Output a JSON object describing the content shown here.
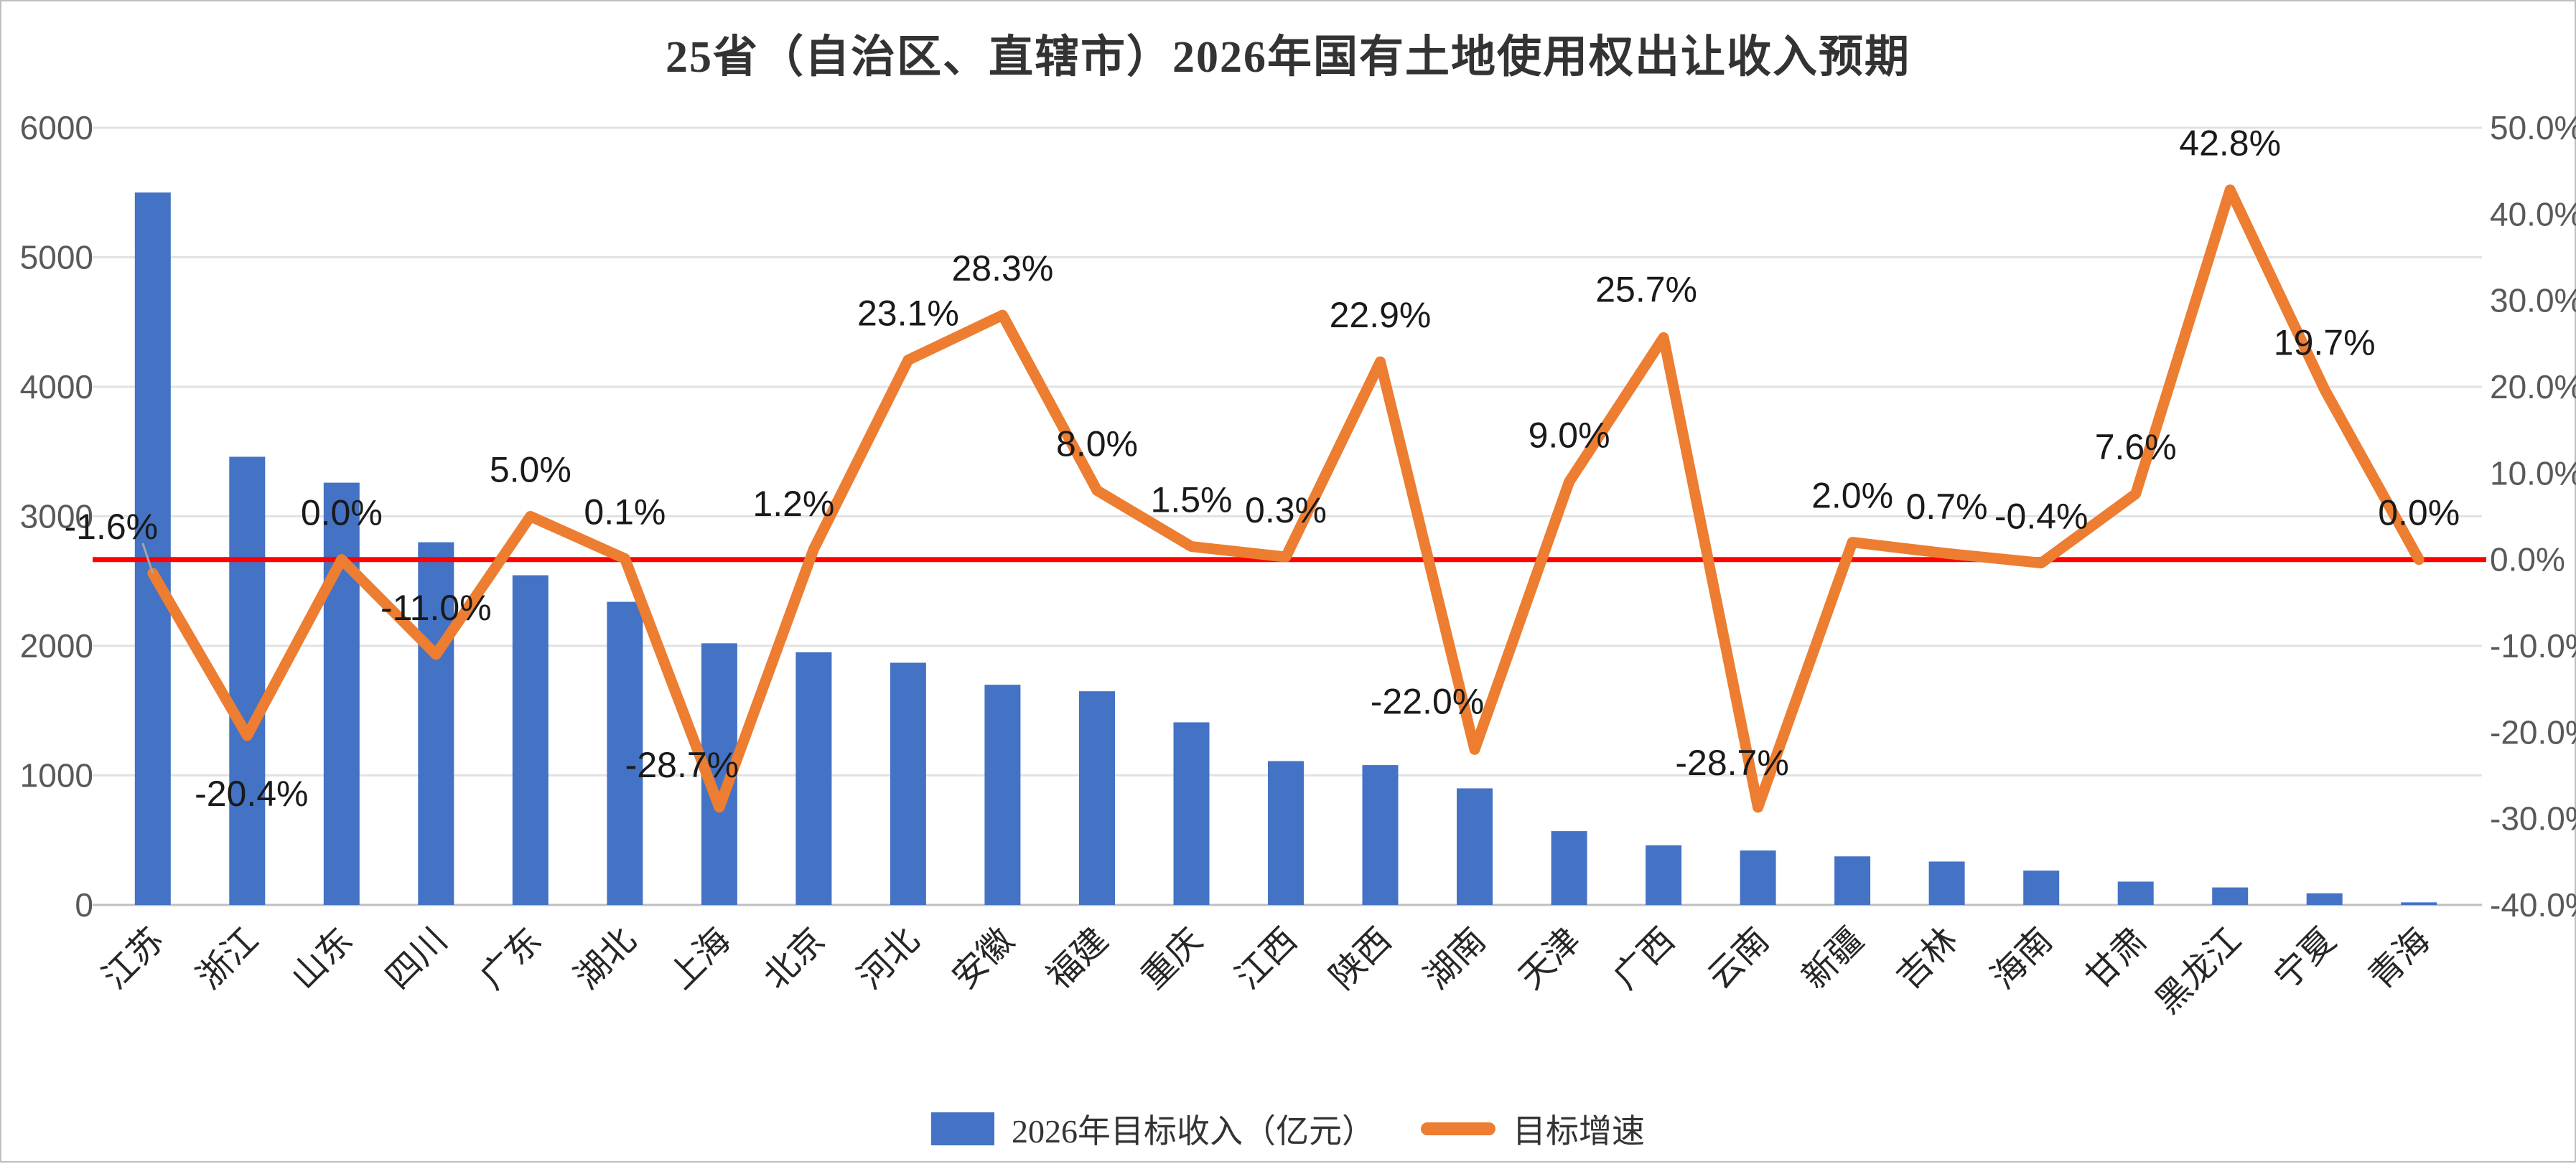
{
  "title": "25省（自治区、直辖市）2026年国有土地使用权出让收入预期",
  "legend": {
    "bar": "2026年目标收入（亿元）",
    "line": "目标增速"
  },
  "colors": {
    "bar": "#4472C4",
    "line": "#ED7D31",
    "zero_line": "#FF0000",
    "grid": "#E2E2E2",
    "axis_line": "#BFBFBF",
    "axis_text": "#595959",
    "label_text": "#1A1A1A",
    "category_text": "#262626"
  },
  "chart_data": {
    "type": "bar+line combo",
    "title": "25省（自治区、直辖市）2026年国有土地使用权出让收入预期",
    "categories": [
      "江苏",
      "浙江",
      "山东",
      "四川",
      "广东",
      "湖北",
      "上海",
      "北京",
      "河北",
      "安徽",
      "福建",
      "重庆",
      "江西",
      "陕西",
      "湖南",
      "天津",
      "广西",
      "云南",
      "新疆",
      "吉林",
      "海南",
      "甘肃",
      "黑龙江",
      "宁夏",
      "青海"
    ],
    "series": [
      {
        "name": "2026年目标收入（亿元）",
        "type": "bar",
        "axis": "left",
        "values": [
          5500,
          3460,
          3260,
          2800,
          2545,
          2340,
          2020,
          1950,
          1870,
          1700,
          1650,
          1410,
          1110,
          1080,
          900,
          570,
          460,
          420,
          375,
          335,
          265,
          180,
          135,
          90,
          20
        ]
      },
      {
        "name": "目标增速",
        "type": "line",
        "axis": "right",
        "values_pct": [
          -1.6,
          -20.4,
          0.0,
          -11.0,
          5.0,
          0.1,
          -28.7,
          1.2,
          23.1,
          28.3,
          8.0,
          1.5,
          0.3,
          22.9,
          -22.0,
          9.0,
          25.7,
          -28.7,
          2.0,
          0.7,
          -0.4,
          7.6,
          42.8,
          19.7,
          0.0
        ]
      }
    ],
    "data_labels": [
      "-1.6%",
      "-20.4%",
      "0.0%",
      "-11.0%",
      "5.0%",
      "0.1%",
      "-28.7%",
      "1.2%",
      "23.1%",
      "28.3%",
      "8.0%",
      "1.5%",
      "0.3%",
      "22.9%",
      "-22.0%",
      "9.0%",
      "25.7%",
      "-28.7%",
      "2.0%",
      "0.7%",
      "-0.4%",
      "7.6%",
      "42.8%",
      "19.7%",
      "0.0%"
    ],
    "left_axis": {
      "min": 0,
      "max": 6000,
      "step": 1000,
      "tick_values": [
        0,
        1000,
        2000,
        3000,
        4000,
        5000,
        6000
      ],
      "tick_labels": [
        "0",
        "1000",
        "2000",
        "3000",
        "4000",
        "5000",
        "6000"
      ]
    },
    "right_axis": {
      "min": -40,
      "max": 50,
      "step": 10,
      "tick_values": [
        50,
        40,
        30,
        20,
        10,
        0,
        -10,
        -20,
        -30,
        -40
      ],
      "tick_labels": [
        "50.0%",
        "40.0%",
        "30.0%",
        "20.0%",
        "10.0%",
        "0.0%",
        "-10.0%",
        "-20.0%",
        "-30.0%",
        "-40.0%"
      ]
    },
    "zero_reference_line": {
      "value_pct": 0,
      "color": "#FF0000"
    },
    "grid": "horizontal",
    "legend_position": "bottom-center"
  }
}
